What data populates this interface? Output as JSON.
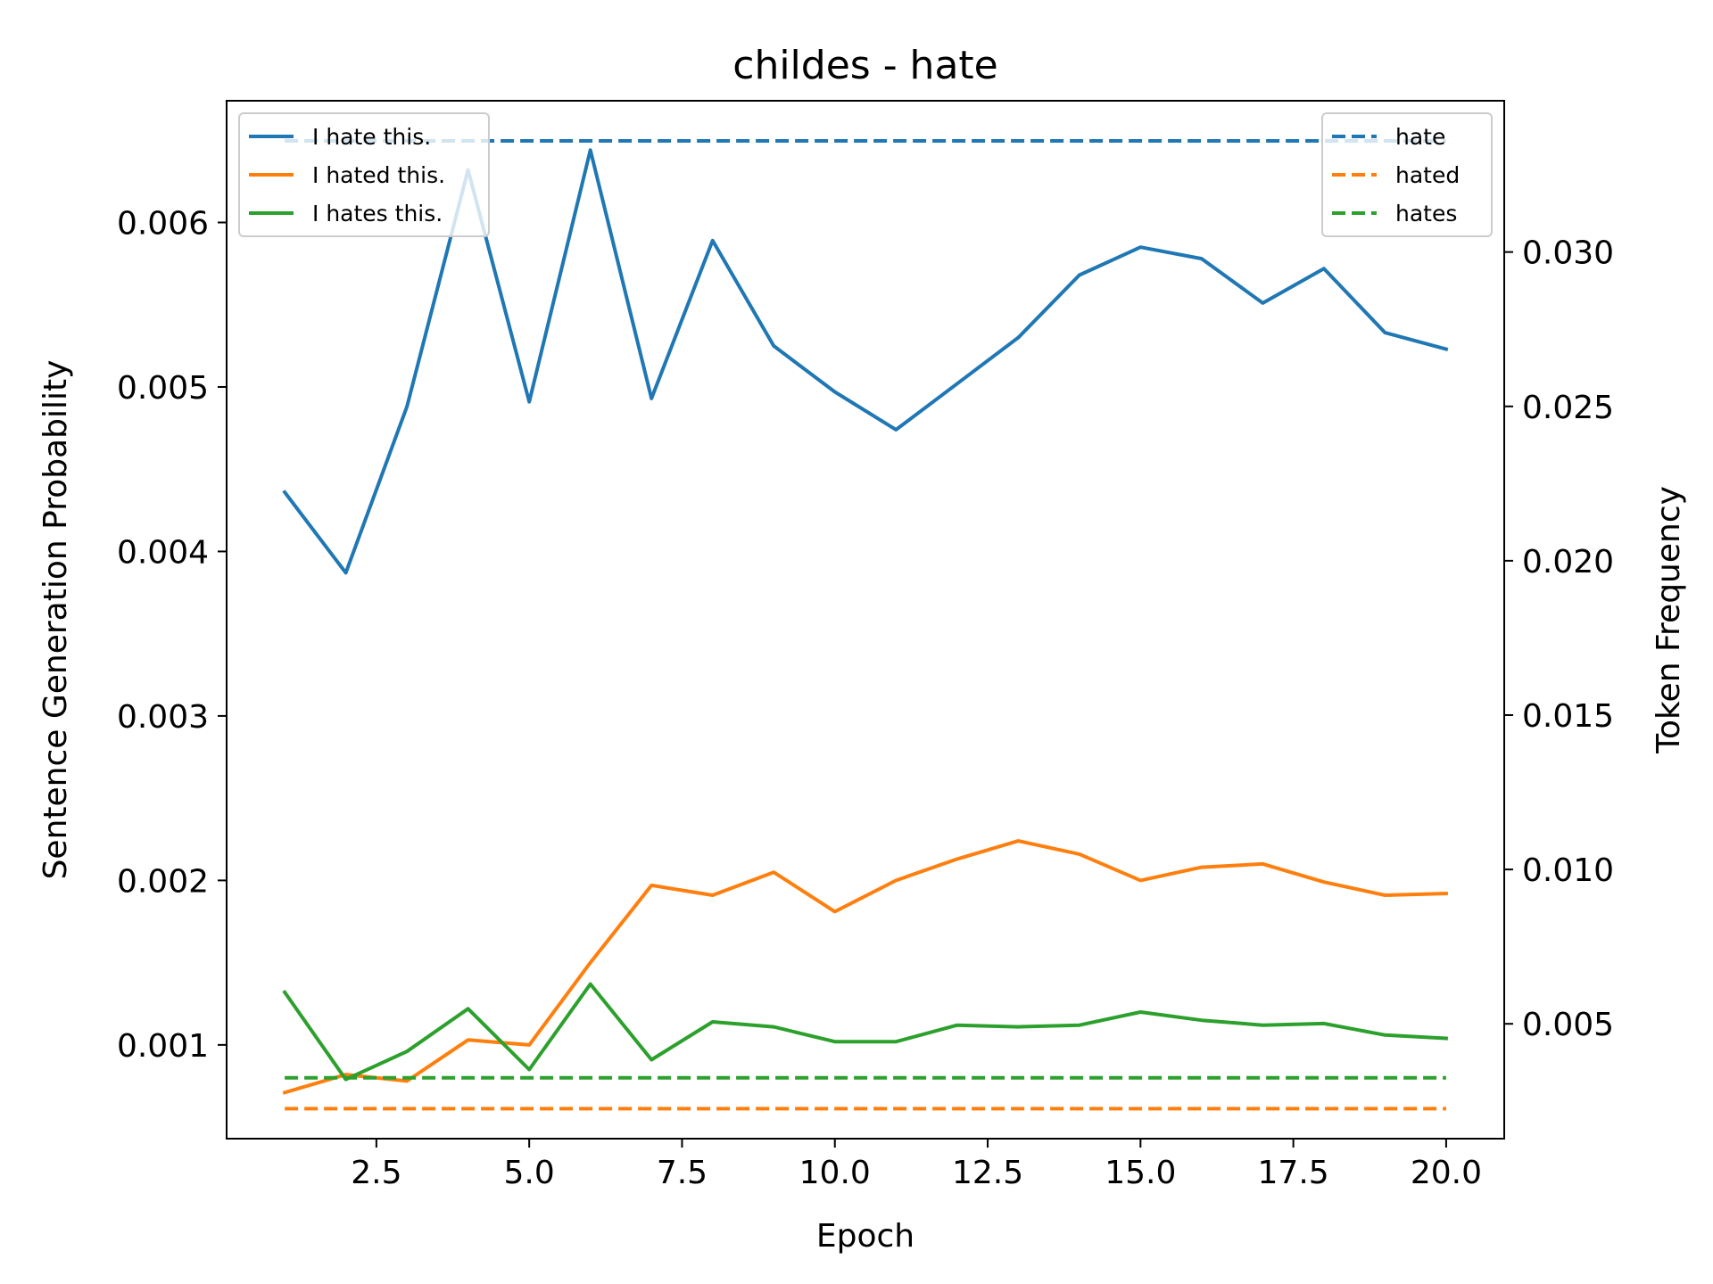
{
  "chart_data": {
    "type": "line",
    "title": "childes - hate",
    "xlabel": "Epoch",
    "ylabel": "Sentence Generation Probability",
    "y2label": "Token Frequency",
    "xlim": [
      0.05,
      20.95
    ],
    "ylim": [
      0.00043,
      0.00674
    ],
    "y2lim": [
      0.00128,
      0.0349
    ],
    "x_ticks": [
      2.5,
      5.0,
      7.5,
      10.0,
      12.5,
      15.0,
      17.5,
      20.0
    ],
    "x_tick_labels": [
      "2.5",
      "5.0",
      "7.5",
      "10.0",
      "12.5",
      "15.0",
      "17.5",
      "20.0"
    ],
    "y_ticks": [
      0.001,
      0.002,
      0.003,
      0.004,
      0.005,
      0.006
    ],
    "y_tick_labels": [
      "0.001",
      "0.002",
      "0.003",
      "0.004",
      "0.005",
      "0.006"
    ],
    "y2_ticks": [
      0.005,
      0.01,
      0.015,
      0.02,
      0.025,
      0.03
    ],
    "y2_tick_labels": [
      "0.005",
      "0.010",
      "0.015",
      "0.020",
      "0.025",
      "0.030"
    ],
    "grid": false,
    "legend_left_position": "top-left",
    "legend_right_position": "top-right",
    "x": [
      1,
      2,
      3,
      4,
      5,
      6,
      7,
      8,
      9,
      10,
      11,
      12,
      13,
      14,
      15,
      16,
      17,
      18,
      19,
      20
    ],
    "series": [
      {
        "name": "I hate this.",
        "axis": "left",
        "style": "solid",
        "color": "#1f77b4",
        "values": [
          0.00436,
          0.00387,
          0.00488,
          0.00632,
          0.00491,
          0.00644,
          0.00493,
          0.00589,
          0.00525,
          0.00497,
          0.00474,
          0.00502,
          0.0053,
          0.00568,
          0.00585,
          0.00578,
          0.00551,
          0.00572,
          0.00533,
          0.00523
        ]
      },
      {
        "name": "I hated this.",
        "axis": "left",
        "style": "solid",
        "color": "#ff7f0e",
        "values": [
          0.00071,
          0.00082,
          0.00078,
          0.00103,
          0.001,
          0.0015,
          0.00197,
          0.00191,
          0.00205,
          0.00181,
          0.002,
          0.00213,
          0.00224,
          0.00216,
          0.002,
          0.00208,
          0.0021,
          0.00199,
          0.00191,
          0.00192
        ]
      },
      {
        "name": "I hates this.",
        "axis": "left",
        "style": "solid",
        "color": "#2ca02c",
        "values": [
          0.00132,
          0.00079,
          0.00096,
          0.00122,
          0.00085,
          0.00137,
          0.00091,
          0.00114,
          0.00111,
          0.00102,
          0.00102,
          0.00112,
          0.00111,
          0.00112,
          0.0012,
          0.00115,
          0.00112,
          0.00113,
          0.00106,
          0.00104
        ]
      },
      {
        "name": "hate",
        "axis": "right",
        "style": "dashed",
        "color": "#1f77b4",
        "values": [
          0.0336,
          0.0336,
          0.0336,
          0.0336,
          0.0336,
          0.0336,
          0.0336,
          0.0336,
          0.0336,
          0.0336,
          0.0336,
          0.0336,
          0.0336,
          0.0336,
          0.0336,
          0.0336,
          0.0336,
          0.0336,
          0.0336,
          0.0336
        ]
      },
      {
        "name": "hated",
        "axis": "right",
        "style": "dashed",
        "color": "#ff7f0e",
        "values": [
          0.00225,
          0.00225,
          0.00225,
          0.00225,
          0.00225,
          0.00225,
          0.00225,
          0.00225,
          0.00225,
          0.00225,
          0.00225,
          0.00225,
          0.00225,
          0.00225,
          0.00225,
          0.00225,
          0.00225,
          0.00225,
          0.00225,
          0.00225
        ]
      },
      {
        "name": "hates",
        "axis": "right",
        "style": "dashed",
        "color": "#2ca02c",
        "values": [
          0.00325,
          0.00325,
          0.00325,
          0.00325,
          0.00325,
          0.00325,
          0.00325,
          0.00325,
          0.00325,
          0.00325,
          0.00325,
          0.00325,
          0.00325,
          0.00325,
          0.00325,
          0.00325,
          0.00325,
          0.00325,
          0.00325,
          0.00325
        ]
      }
    ]
  }
}
